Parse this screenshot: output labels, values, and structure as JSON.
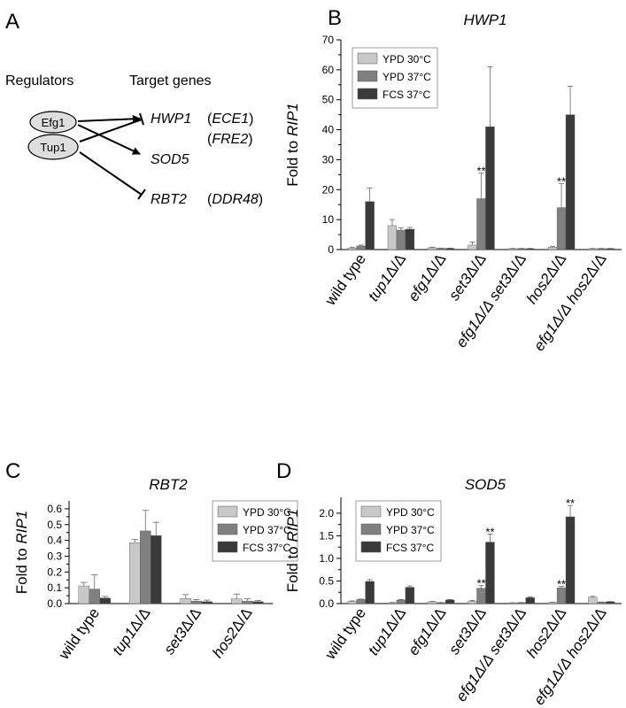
{
  "panel_a": {
    "letter": "A",
    "regulators_header": "Regulators",
    "targets_header": "Target genes",
    "regulators": [
      "Efg1",
      "Tup1"
    ],
    "targets": [
      {
        "gene": "HWP1",
        "extra": "ECE1"
      },
      {
        "gene": "",
        "extra": "FRE2"
      },
      {
        "gene": "SOD5",
        "extra": ""
      },
      {
        "gene": "RBT2",
        "extra": "DDR48"
      }
    ]
  },
  "colors": {
    "ypd30": "#c8c8c8",
    "ypd37": "#808080",
    "fcs37": "#3a3a3a"
  },
  "chart_data": [
    {
      "panel": "B",
      "type": "bar",
      "title": "HWP1",
      "ylabel_prefix": "Fold to ",
      "ylabel_gene": "RIP1",
      "ylim": [
        0,
        70
      ],
      "yticks": [
        0,
        10,
        20,
        30,
        40,
        50,
        60,
        70
      ],
      "legend_position": "top-left",
      "grid": false,
      "categories": [
        {
          "pre": "",
          "gene": "",
          "post": "wild type"
        },
        {
          "pre": "",
          "gene": "tup1",
          "post": "Δ/Δ"
        },
        {
          "pre": "",
          "gene": "efg1",
          "post": "Δ/Δ"
        },
        {
          "pre": "",
          "gene": "set3",
          "post": "Δ/Δ"
        },
        {
          "pre": "efg1Δ/Δ ",
          "gene": "set3",
          "post": "Δ/Δ"
        },
        {
          "pre": "",
          "gene": "hos2",
          "post": "Δ/Δ"
        },
        {
          "pre": "efg1Δ/Δ ",
          "gene": "hos2",
          "post": "Δ/Δ"
        }
      ],
      "series": [
        {
          "name": "YPD 30°C",
          "color_key": "ypd30",
          "values": [
            0.5,
            8,
            0.6,
            1.5,
            0.3,
            0.8,
            0.3
          ],
          "errors": [
            0.3,
            2,
            0.2,
            1,
            0.1,
            0.3,
            0.1
          ]
        },
        {
          "name": "YPD 37°C",
          "color_key": "ypd37",
          "values": [
            1.2,
            6.5,
            0.4,
            17,
            0.3,
            14,
            0.3
          ],
          "errors": [
            0.3,
            0.8,
            0.1,
            8.5,
            0.1,
            8,
            0.1
          ]
        },
        {
          "name": "FCS 37°C",
          "color_key": "fcs37",
          "values": [
            16,
            6.8,
            0.4,
            41,
            0.3,
            45,
            0.3
          ],
          "errors": [
            4.5,
            0.6,
            0.1,
            20,
            0.1,
            9.5,
            0.1
          ]
        }
      ],
      "annotations": [
        {
          "category": 3,
          "series": 1,
          "text": "**"
        },
        {
          "category": 5,
          "series": 1,
          "text": "**"
        }
      ]
    },
    {
      "panel": "C",
      "type": "bar",
      "title": "RBT2",
      "ylabel_prefix": "Fold to ",
      "ylabel_gene": "RIP1",
      "ylim": [
        0,
        0.65
      ],
      "yticks": [
        0.0,
        0.1,
        0.2,
        0.3,
        0.4,
        0.5,
        0.6
      ],
      "legend_position": "top-right",
      "grid": false,
      "categories": [
        {
          "pre": "",
          "gene": "",
          "post": "wild type"
        },
        {
          "pre": "",
          "gene": "tup1",
          "post": "Δ/Δ"
        },
        {
          "pre": "",
          "gene": "set3",
          "post": "Δ/Δ"
        },
        {
          "pre": "",
          "gene": "hos2",
          "post": "Δ/Δ"
        }
      ],
      "series": [
        {
          "name": "YPD 30°C",
          "color_key": "ypd30",
          "values": [
            0.112,
            0.385,
            0.032,
            0.03
          ],
          "errors": [
            0.022,
            0.02,
            0.025,
            0.03
          ]
        },
        {
          "name": "YPD 37°C",
          "color_key": "ypd37",
          "values": [
            0.092,
            0.46,
            0.016,
            0.015
          ],
          "errors": [
            0.09,
            0.13,
            0.01,
            0.015
          ]
        },
        {
          "name": "FCS 37°C",
          "color_key": "fcs37",
          "values": [
            0.035,
            0.43,
            0.012,
            0.012
          ],
          "errors": [
            0.01,
            0.085,
            0.01,
            0.007
          ]
        }
      ],
      "annotations": []
    },
    {
      "panel": "D",
      "type": "bar",
      "title": "SOD5",
      "ylabel_prefix": "Fold to ",
      "ylabel_gene": "RIP1",
      "ylim": [
        0,
        2.35
      ],
      "yticks": [
        0.0,
        0.5,
        1.0,
        1.5,
        2.0
      ],
      "legend_position": "top-left",
      "grid": false,
      "categories": [
        {
          "pre": "",
          "gene": "",
          "post": "wild type"
        },
        {
          "pre": "",
          "gene": "tup1",
          "post": "Δ/Δ"
        },
        {
          "pre": "",
          "gene": "efg1",
          "post": "Δ/Δ"
        },
        {
          "pre": "",
          "gene": "set3",
          "post": "Δ/Δ"
        },
        {
          "pre": "efg1Δ/Δ ",
          "gene": "set3",
          "post": "Δ/Δ"
        },
        {
          "pre": "",
          "gene": "hos2",
          "post": "Δ/Δ"
        },
        {
          "pre": "efg1Δ/Δ ",
          "gene": "hos2",
          "post": "Δ/Δ"
        }
      ],
      "series": [
        {
          "name": "YPD 30°C",
          "color_key": "ypd30",
          "values": [
            0.05,
            0.02,
            0.04,
            0.05,
            0.015,
            0.025,
            0.14
          ],
          "errors": [
            0.01,
            0.005,
            0.01,
            0.02,
            0.005,
            0.005,
            0.02
          ]
        },
        {
          "name": "YPD 37°C",
          "color_key": "ypd37",
          "values": [
            0.09,
            0.08,
            0.02,
            0.34,
            0.02,
            0.35,
            0.03
          ],
          "errors": [
            0.01,
            0.01,
            0.005,
            0.06,
            0.005,
            0.03,
            0.005
          ]
        },
        {
          "name": "FCS 37°C",
          "color_key": "fcs37",
          "values": [
            0.49,
            0.36,
            0.08,
            1.36,
            0.13,
            1.92,
            0.04
          ],
          "errors": [
            0.04,
            0.03,
            0.01,
            0.18,
            0.02,
            0.25,
            0.005
          ]
        }
      ],
      "annotations": [
        {
          "category": 3,
          "series": 1,
          "text": "**"
        },
        {
          "category": 3,
          "series": 2,
          "text": "**"
        },
        {
          "category": 5,
          "series": 1,
          "text": "**"
        },
        {
          "category": 5,
          "series": 2,
          "text": "**"
        }
      ]
    }
  ]
}
